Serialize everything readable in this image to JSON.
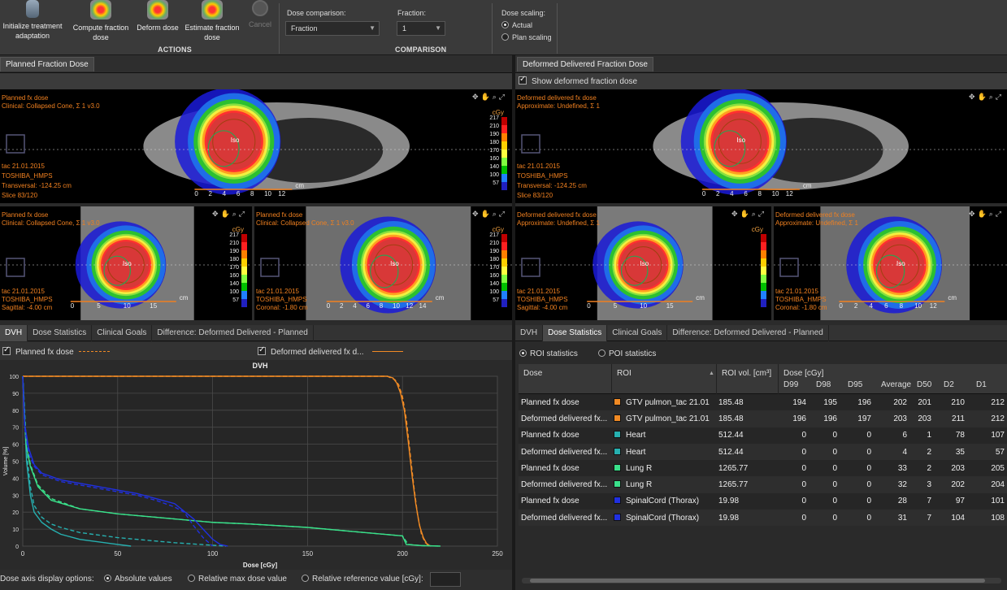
{
  "toolbar": {
    "buttons": [
      {
        "label": "Initialize treatment adaptation"
      },
      {
        "label": "Compute fraction dose"
      },
      {
        "label": "Deform dose"
      },
      {
        "label": "Estimate fraction dose"
      },
      {
        "label": "Cancel"
      }
    ],
    "actions_label": "ACTIONS",
    "comparison_label": "COMPARISON",
    "dose_comparison_label": "Dose comparison:",
    "dose_comparison_value": "Fraction",
    "fraction_label": "Fraction:",
    "fraction_value": "1",
    "dose_scaling_label": "Dose scaling:",
    "dose_scaling_options": [
      "Actual",
      "Plan scaling"
    ]
  },
  "left_panel": {
    "tab": "Planned Fraction Dose",
    "transversal": {
      "title1": "Planned fx dose",
      "title2": "Clinical: Collapsed Cone, Σ 1 v3.0",
      "date": "tac 21.01.2015",
      "scanner": "TOSHIBA_HMPS",
      "position": "Transversal: -124.25 cm",
      "slice": "Slice 83/120",
      "iso": "Iso",
      "scale_unit": "cm",
      "scale_ticks": [
        "0",
        "2",
        "4",
        "6",
        "8",
        "10",
        "12"
      ],
      "legend_unit": "cGy",
      "legend_values": [
        "217",
        "210",
        "190",
        "180",
        "170",
        "160",
        "140",
        "100",
        "57"
      ]
    },
    "sagittal": {
      "title1": "Planned fx dose",
      "title2": "Clinical: Collapsed Cone, Σ 1 v3.0",
      "date": "tac 21.01.2015",
      "scanner": "TOSHIBA_HMPS",
      "position": "Sagittal: -4.00 cm",
      "iso": "Iso",
      "scale_unit": "cm",
      "scale_ticks": [
        "0",
        "5",
        "10",
        "15"
      ],
      "legend_unit": "cGy",
      "legend_values": [
        "217",
        "210",
        "190",
        "180",
        "170",
        "160",
        "140",
        "100",
        "57"
      ]
    },
    "coronal": {
      "title1": "Planned fx dose",
      "title2": "Clinical: Collapsed Cone, Σ 1 v3.0",
      "date": "tac 21.01.2015",
      "scanner": "TOSHIBA_HMPS",
      "position": "Coronal: -1.80 cm",
      "iso": "Iso",
      "scale_unit": "cm",
      "scale_ticks": [
        "0",
        "2",
        "4",
        "6",
        "8",
        "10",
        "12",
        "14"
      ],
      "legend_unit": "cGy",
      "legend_values": [
        "217",
        "210",
        "190",
        "180",
        "170",
        "160",
        "140",
        "100",
        "57"
      ]
    },
    "bottom_tabs": [
      "DVH",
      "Dose Statistics",
      "Clinical Goals",
      "Difference: Deformed Delivered - Planned"
    ],
    "legend_planned": "Planned fx dose",
    "legend_deformed": "Deformed delivered fx d...",
    "dose_axis_label": "Dose axis display options:",
    "dose_axis_options": [
      "Absolute values",
      "Relative max dose value",
      "Relative reference value [cGy]:"
    ]
  },
  "right_panel": {
    "tab": "Deformed Delivered Fraction Dose",
    "show_deformed": "Show deformed fraction dose",
    "transversal": {
      "title1": "Deformed delivered fx dose",
      "title2": "Approximate: Undefined, Σ 1",
      "date": "tac 21.01.2015",
      "scanner": "TOSHIBA_HMPS",
      "position": "Transversal: -124.25 cm",
      "slice": "Slice 83/120",
      "iso": "Iso",
      "scale_unit": "cm",
      "scale_ticks": [
        "0",
        "2",
        "4",
        "6",
        "8",
        "10",
        "12"
      ]
    },
    "sagittal": {
      "title1": "Deformed delivered fx dose",
      "title2": "Approximate: Undefined, Σ 1",
      "date": "tac 21.01.2015",
      "scanner": "TOSHIBA_HMPS",
      "position": "Sagittal: -4.00 cm",
      "iso": "Iso",
      "scale_unit": "cm",
      "scale_ticks": [
        "0",
        "5",
        "10",
        "15"
      ],
      "legend_unit": "cGy"
    },
    "coronal": {
      "title1": "Deformed delivered fx dose",
      "title2": "Approximate: Undefined, Σ 1",
      "date": "tac 21.01.2015",
      "scanner": "TOSHIBA_HMPS",
      "position": "Coronal: -1.80 cm",
      "iso": "Iso",
      "scale_unit": "cm",
      "scale_ticks": [
        "0",
        "2",
        "4",
        "6",
        "8",
        "10",
        "12"
      ]
    },
    "bottom_tabs": [
      "DVH",
      "Dose Statistics",
      "Clinical Goals",
      "Difference: Deformed Delivered - Planned"
    ],
    "stat_options": [
      "ROI statistics",
      "POI statistics"
    ],
    "table": {
      "headers": {
        "dose": "Dose",
        "roi": "ROI",
        "vol": "ROI vol. [cm³]",
        "group": "Dose [cGy]"
      },
      "sub_headers": [
        "D99",
        "D98",
        "D95",
        "Average",
        "D50",
        "D2",
        "D1"
      ],
      "rows": [
        {
          "dose": "Planned fx dose",
          "roi": "GTV pulmon_tac 21.01",
          "color": "#f08a24",
          "vol": "185.48",
          "vals": [
            "194",
            "195",
            "196",
            "202",
            "201",
            "210",
            "212"
          ]
        },
        {
          "dose": "Deformed delivered fx...",
          "roi": "GTV pulmon_tac 21.01",
          "color": "#f08a24",
          "vol": "185.48",
          "vals": [
            "196",
            "196",
            "197",
            "203",
            "203",
            "211",
            "212"
          ]
        },
        {
          "dose": "Planned fx dose",
          "roi": "Heart",
          "color": "#26b0b0",
          "vol": "512.44",
          "vals": [
            "0",
            "0",
            "0",
            "6",
            "1",
            "78",
            "107"
          ]
        },
        {
          "dose": "Deformed delivered fx...",
          "roi": "Heart",
          "color": "#26b0b0",
          "vol": "512.44",
          "vals": [
            "0",
            "0",
            "0",
            "4",
            "2",
            "35",
            "57"
          ]
        },
        {
          "dose": "Planned fx dose",
          "roi": "Lung R",
          "color": "#3ae08a",
          "vol": "1265.77",
          "vals": [
            "0",
            "0",
            "0",
            "33",
            "2",
            "203",
            "205"
          ]
        },
        {
          "dose": "Deformed delivered fx...",
          "roi": "Lung R",
          "color": "#3ae08a",
          "vol": "1265.77",
          "vals": [
            "0",
            "0",
            "0",
            "32",
            "3",
            "202",
            "204"
          ]
        },
        {
          "dose": "Planned fx dose",
          "roi": "SpinalCord (Thorax)",
          "color": "#2030e0",
          "vol": "19.98",
          "vals": [
            "0",
            "0",
            "0",
            "28",
            "7",
            "97",
            "101"
          ]
        },
        {
          "dose": "Deformed delivered fx...",
          "roi": "SpinalCord (Thorax)",
          "color": "#2030e0",
          "vol": "19.98",
          "vals": [
            "0",
            "0",
            "0",
            "31",
            "7",
            "104",
            "108"
          ]
        }
      ]
    }
  },
  "colors": {
    "legend": [
      "#c00000",
      "#ff2020",
      "#ff8000",
      "#ffd000",
      "#ffff40",
      "#80ff40",
      "#00c000",
      "#2080ff",
      "#2020c0"
    ]
  },
  "chart_data": {
    "type": "line",
    "title": "DVH",
    "xlabel": "Dose [cGy]",
    "ylabel": "Volume [%]",
    "xlim": [
      0,
      250
    ],
    "ylim": [
      0,
      100
    ],
    "xticks": [
      0,
      50,
      100,
      150,
      200,
      250
    ],
    "yticks": [
      0,
      10,
      20,
      30,
      40,
      50,
      60,
      70,
      80,
      90,
      100
    ],
    "grid": true,
    "series": [
      {
        "roi": "GTV pulmon_tac 21.01",
        "dose": "Planned fx dose",
        "color": "#f08a24",
        "dashed": true,
        "x": [
          0,
          180,
          192,
          196,
          198,
          200,
          202,
          204,
          206,
          208,
          210,
          212,
          215
        ],
        "y": [
          100,
          100,
          100,
          98,
          95,
          88,
          75,
          55,
          35,
          18,
          7,
          2,
          0
        ]
      },
      {
        "roi": "GTV pulmon_tac 21.01",
        "dose": "Deformed delivered fx dose",
        "color": "#f08a24",
        "dashed": false,
        "x": [
          0,
          180,
          192,
          195,
          197,
          199,
          201,
          203,
          205,
          207,
          209,
          211,
          213,
          215
        ],
        "y": [
          100,
          100,
          100,
          99,
          96,
          90,
          80,
          62,
          42,
          25,
          12,
          5,
          1,
          0
        ]
      },
      {
        "roi": "Heart",
        "dose": "Planned fx dose",
        "color": "#26b0b0",
        "dashed": true,
        "x": [
          0,
          1,
          2,
          4,
          6,
          10,
          15,
          20,
          30,
          50,
          80,
          100,
          107
        ],
        "y": [
          100,
          80,
          55,
          35,
          24,
          17,
          13,
          11,
          8,
          5,
          2,
          0.5,
          0
        ]
      },
      {
        "roi": "Heart",
        "dose": "Deformed delivered fx dose",
        "color": "#26b0b0",
        "dashed": false,
        "x": [
          0,
          1,
          2,
          4,
          6,
          10,
          15,
          20,
          30,
          50,
          57
        ],
        "y": [
          100,
          75,
          50,
          30,
          20,
          14,
          10,
          7,
          4,
          1,
          0
        ]
      },
      {
        "roi": "Lung R",
        "dose": "Planned fx dose",
        "color": "#3ae08a",
        "dashed": true,
        "x": [
          0,
          1,
          2,
          4,
          8,
          15,
          30,
          50,
          80,
          100,
          120,
          150,
          180,
          200,
          203,
          210,
          220
        ],
        "y": [
          100,
          75,
          60,
          48,
          36,
          28,
          22,
          19,
          16,
          14,
          13,
          11,
          8,
          6,
          1,
          0.3,
          0
        ]
      },
      {
        "roi": "Lung R",
        "dose": "Deformed delivered fx dose",
        "color": "#3ae08a",
        "dashed": false,
        "x": [
          0,
          1,
          2,
          4,
          8,
          15,
          30,
          50,
          80,
          100,
          120,
          150,
          180,
          200,
          202,
          210,
          220
        ],
        "y": [
          100,
          73,
          58,
          47,
          35,
          27,
          22,
          19,
          16,
          14,
          13,
          11,
          8,
          6,
          1,
          0.3,
          0
        ]
      },
      {
        "roi": "SpinalCord (Thorax)",
        "dose": "Planned fx dose",
        "color": "#2030e0",
        "dashed": true,
        "x": [
          0,
          1,
          3,
          6,
          10,
          20,
          30,
          40,
          50,
          60,
          70,
          80,
          85,
          90,
          95,
          100
        ],
        "y": [
          100,
          70,
          55,
          47,
          42,
          38,
          36,
          34,
          32,
          30,
          27,
          23,
          20,
          12,
          5,
          0
        ]
      },
      {
        "roi": "SpinalCord (Thorax)",
        "dose": "Deformed delivered fx dose",
        "color": "#2030e0",
        "dashed": false,
        "x": [
          0,
          1,
          3,
          6,
          10,
          20,
          30,
          40,
          50,
          60,
          70,
          80,
          90,
          95,
          100,
          104,
          108
        ],
        "y": [
          100,
          72,
          58,
          48,
          43,
          39,
          37,
          35,
          33,
          31,
          28,
          25,
          16,
          10,
          4,
          1,
          0
        ]
      }
    ]
  }
}
